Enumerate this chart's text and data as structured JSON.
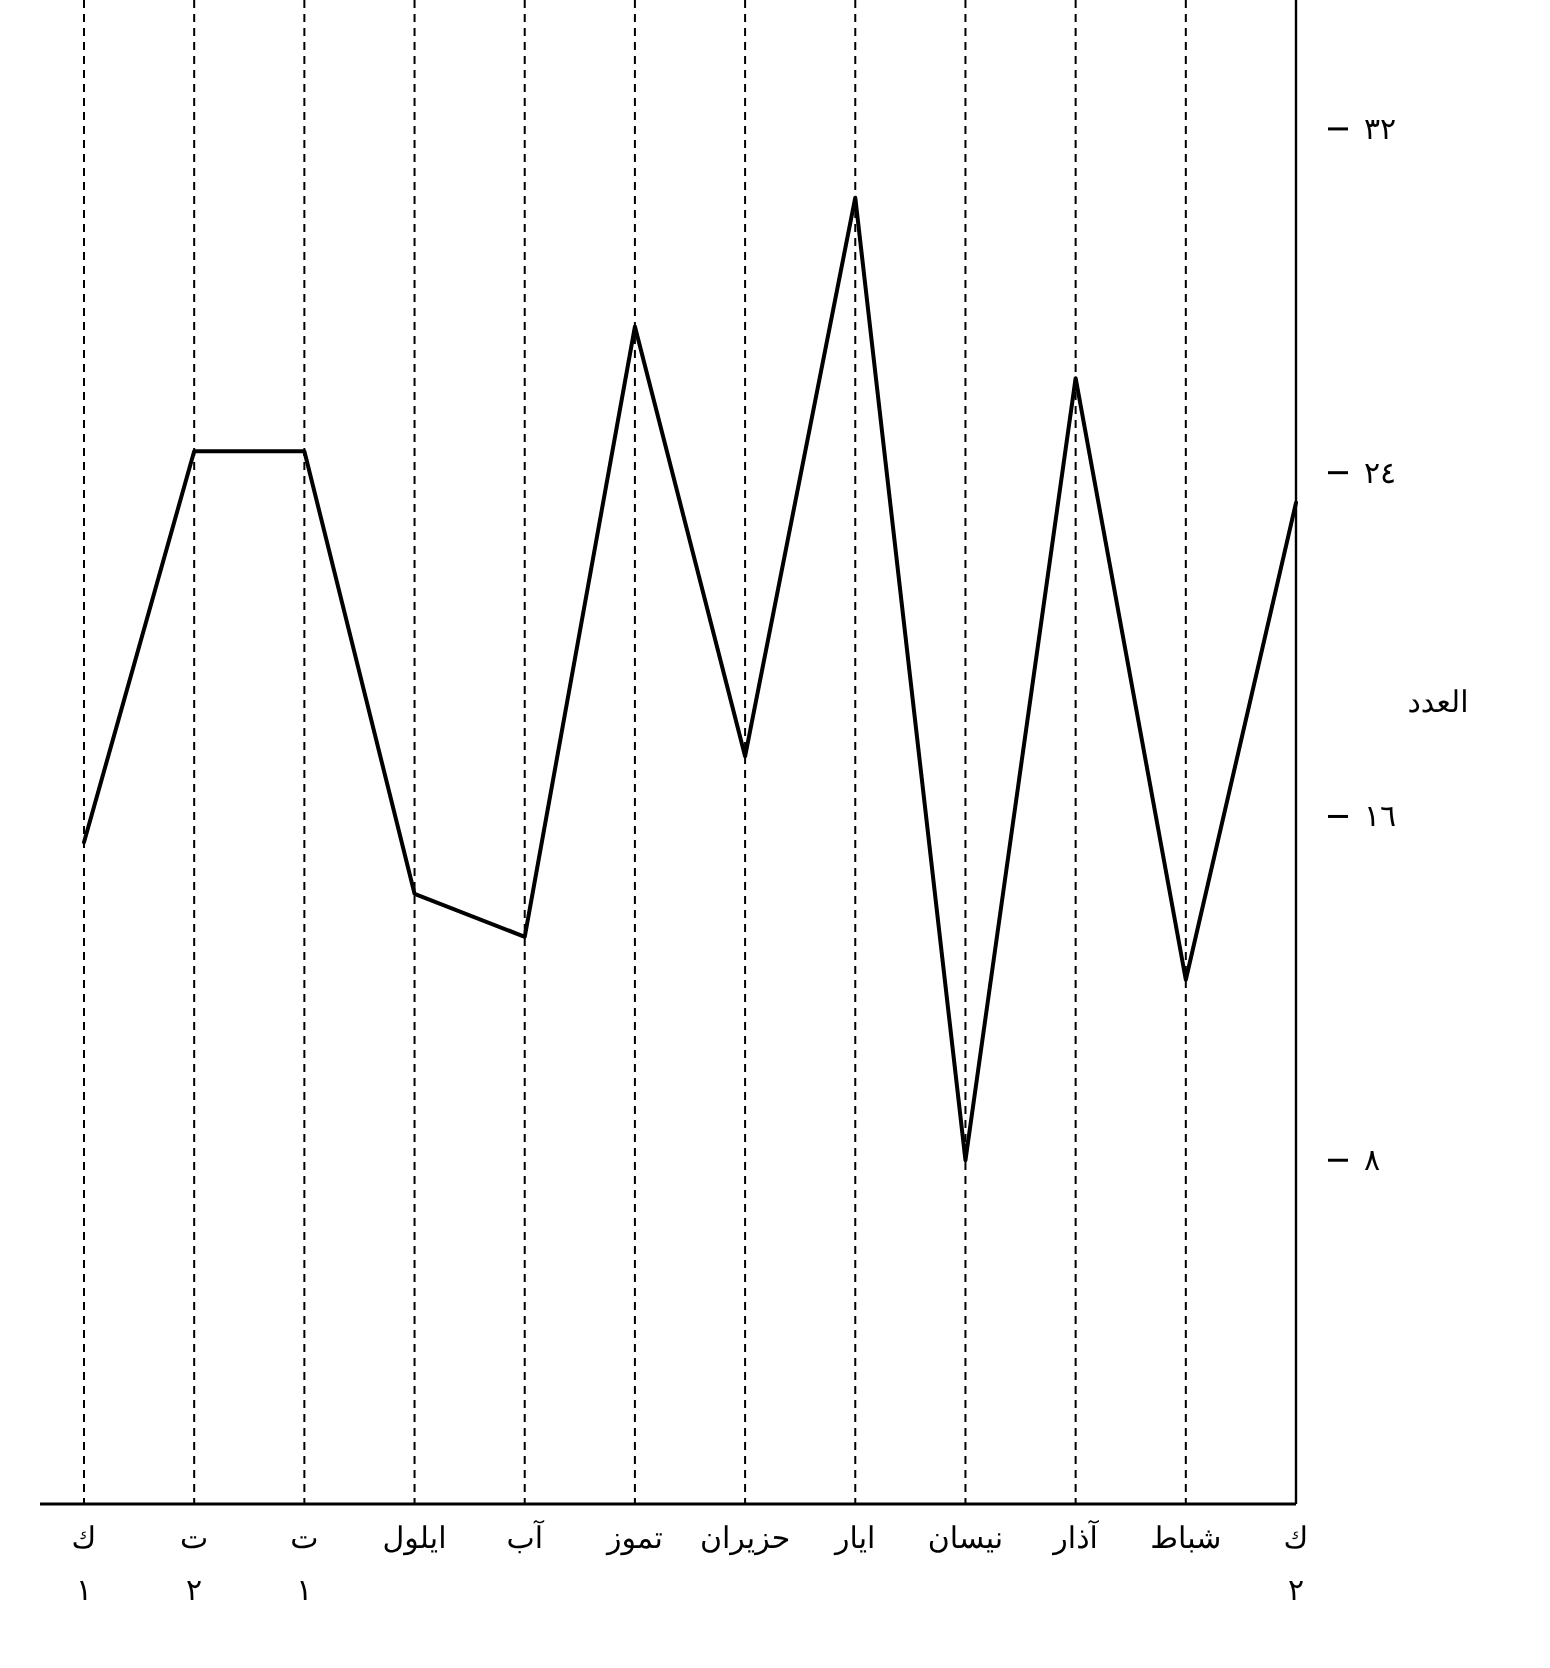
{
  "chart_data": {
    "type": "line",
    "categories": [
      "ك ١",
      "ت ٢",
      "ت ١",
      "ايلول",
      "آب",
      "تموز",
      "حزيران",
      "ايار",
      "نيسان",
      "آذار",
      "شباط",
      "ك ٢"
    ],
    "values": [
      15.4,
      24.5,
      24.5,
      14.2,
      13.2,
      27.4,
      17.4,
      30.4,
      8.0,
      26.2,
      12.2,
      23.3
    ],
    "color": "#000000",
    "ylabel": "العدد",
    "ylim": [
      0,
      35
    ],
    "yticks": [
      {
        "value": 8,
        "label": "٨"
      },
      {
        "value": 16,
        "label": "١٦"
      },
      {
        "value": 24,
        "label": "٢٤"
      },
      {
        "value": 32,
        "label": "٣٢"
      }
    ],
    "line_style": "solid",
    "marker": "none",
    "grid": "x"
  }
}
